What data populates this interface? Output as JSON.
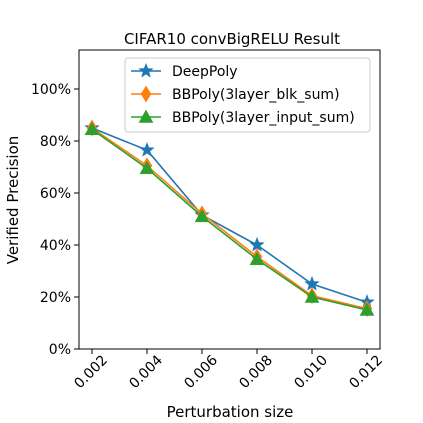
{
  "chart_data": {
    "type": "line",
    "title": "CIFAR10 convBigRELU Result",
    "xlabel": "Perturbation size",
    "ylabel": "Verified Precision",
    "x": [
      "0.002",
      "0.004",
      "0.006",
      "0.008",
      "0.010",
      "0.012"
    ],
    "ylim": [
      0,
      115
    ],
    "yticks": [
      0,
      20,
      40,
      60,
      80,
      100
    ],
    "ytick_labels": [
      "0%",
      "20%",
      "40%",
      "60%",
      "80%",
      "100%"
    ],
    "grid": false,
    "legend_position": "top-center",
    "series": [
      {
        "name": "DeepPoly",
        "values": [
          85,
          76.5,
          51.5,
          40,
          25,
          18
        ],
        "color": "#1f77b4",
        "marker": "star"
      },
      {
        "name": "BBPoly(3layer_blk_sum)",
        "values": [
          85,
          70.5,
          52,
          35.5,
          20.5,
          15.5
        ],
        "color": "#ff7f0e",
        "marker": "diamond"
      },
      {
        "name": "BBPoly(3layer_input_sum)",
        "values": [
          84.5,
          69.5,
          51,
          34.5,
          20,
          15
        ],
        "color": "#2ca02c",
        "marker": "triangle"
      }
    ]
  }
}
